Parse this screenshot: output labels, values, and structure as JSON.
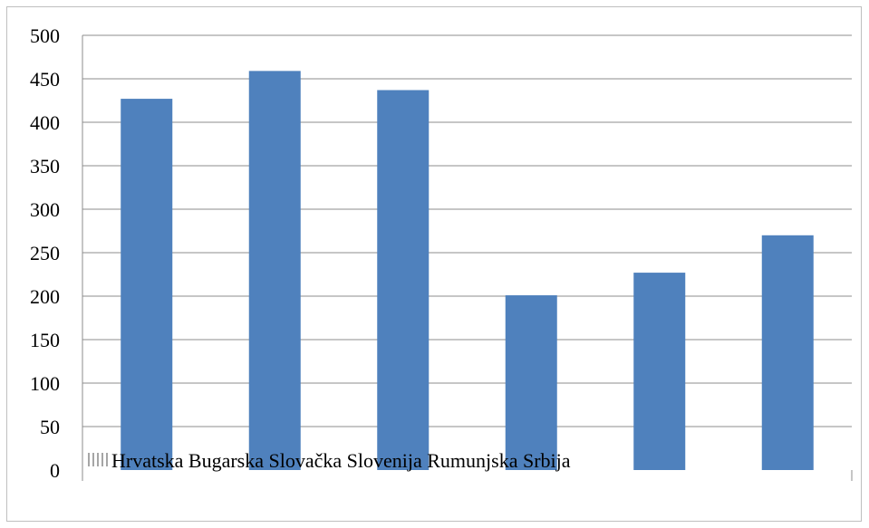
{
  "chart_data": {
    "type": "bar",
    "categories": [
      "Hrvatska",
      "Bugarska",
      "Slovačka",
      "Slovenija",
      "Rumunjska",
      "Srbija"
    ],
    "category_labels_text": "Hrvatska Bugarska Slovačka Slovenija Rumunjska Srbija",
    "series": [
      {
        "values": [
          427,
          459,
          437,
          201,
          227,
          270
        ],
        "color": "#4f81bd"
      }
    ],
    "ylim": [
      0,
      500
    ],
    "yticks": [
      0,
      50,
      100,
      150,
      200,
      250,
      300,
      350,
      400,
      450,
      500
    ],
    "grid": true
  }
}
